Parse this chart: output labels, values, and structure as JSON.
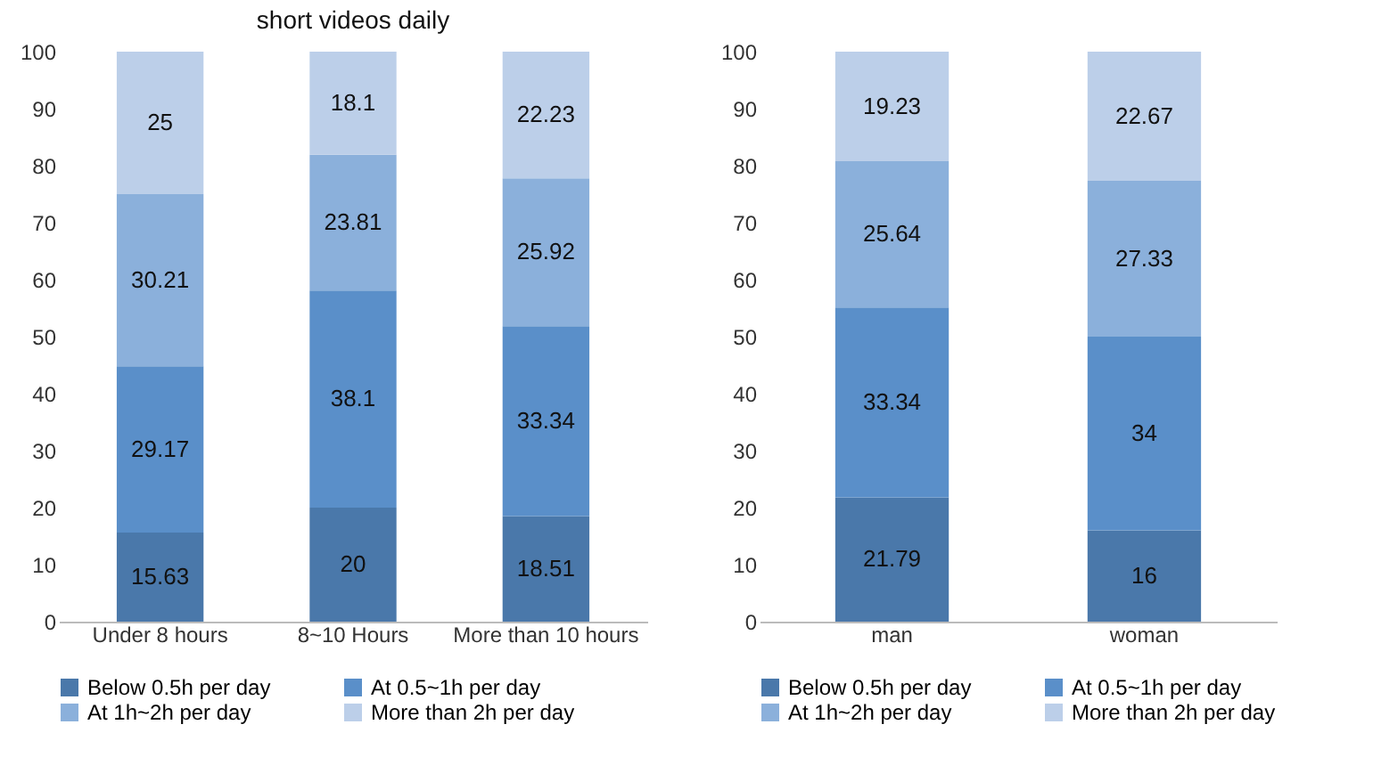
{
  "chart_data": [
    {
      "type": "bar",
      "title": "short videos daily",
      "categories": [
        "Under 8 hours",
        "8~10 Hours",
        "More than 10 hours"
      ],
      "stacked": true,
      "data_labels": true,
      "ylim": [
        0,
        100
      ],
      "yticks": [
        0,
        10,
        20,
        30,
        40,
        50,
        60,
        70,
        80,
        90,
        100
      ],
      "grid": false,
      "legend": "bottom",
      "series": [
        {
          "name": "Below 0.5h per day",
          "color": "#4a78aa",
          "values": [
            15.63,
            20,
            18.51
          ]
        },
        {
          "name": "At 0.5~1h per day",
          "color": "#5a8fc9",
          "values": [
            29.17,
            38.1,
            33.34
          ]
        },
        {
          "name": "At 1h~2h per day",
          "color": "#8bb0db",
          "values": [
            30.21,
            23.81,
            25.92
          ]
        },
        {
          "name": "More than 2h per day",
          "color": "#bccfe9",
          "values": [
            25,
            18.1,
            22.23
          ]
        }
      ]
    },
    {
      "type": "bar",
      "categories": [
        "man",
        "woman"
      ],
      "stacked": true,
      "data_labels": true,
      "ylim": [
        0,
        100
      ],
      "yticks": [
        0,
        10,
        20,
        30,
        40,
        50,
        60,
        70,
        80,
        90,
        100
      ],
      "grid": false,
      "legend": "bottom",
      "series": [
        {
          "name": "Below 0.5h per day",
          "color": "#4a78aa",
          "values": [
            21.79,
            16
          ]
        },
        {
          "name": "At 0.5~1h per day",
          "color": "#5a8fc9",
          "values": [
            33.34,
            34
          ]
        },
        {
          "name": "At 1h~2h per day",
          "color": "#8bb0db",
          "values": [
            25.64,
            27.33
          ]
        },
        {
          "name": "More than 2h per day",
          "color": "#bccfe9",
          "values": [
            19.23,
            22.67
          ]
        }
      ]
    }
  ]
}
